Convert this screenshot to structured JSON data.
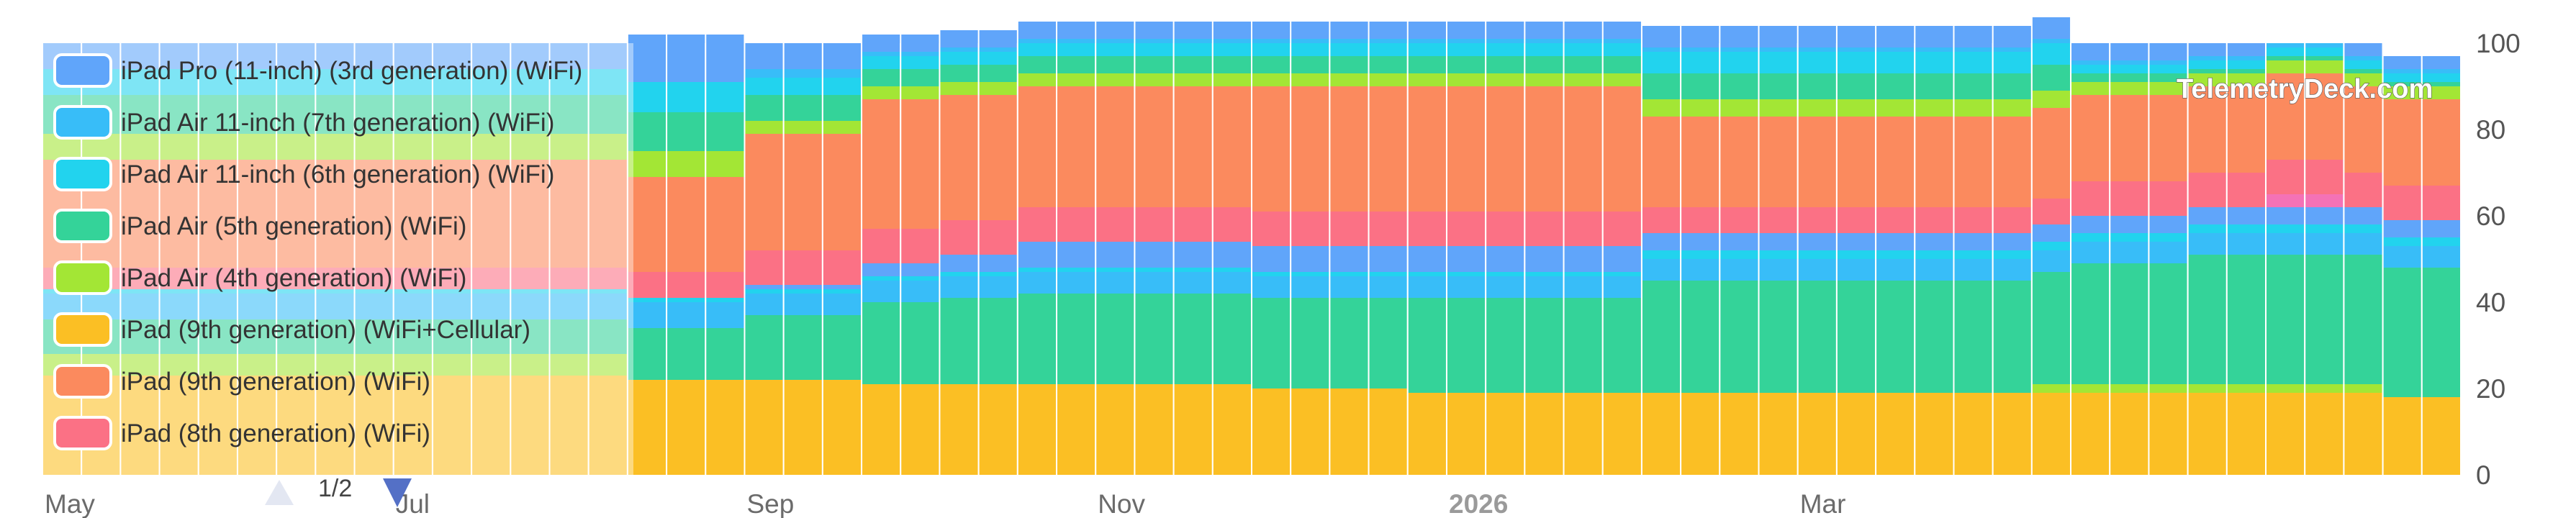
{
  "watermark": "TelemetryDeck.com",
  "pager": {
    "label": "1/2"
  },
  "colors": {
    "iPad Pro (11-inch) (3rd generation) (WiFi)": "#60a5fa",
    "iPad Air 11-inch (7th generation) (WiFi)": "#38bdf8",
    "iPad Air 11-inch (6th generation) (WiFi)": "#22d3ee",
    "iPad Air (5th generation) (WiFi)": "#34d399",
    "iPad Air (4th generation) (WiFi)": "#a3e635",
    "iPad (9th generation) (WiFi+Cellular)": "#fbbf24",
    "iPad (9th generation) (WiFi)": "#fb8a5e",
    "iPad (8th generation) (WiFi)": "#fb7185",
    "other": "#f472b6"
  },
  "chart_data": {
    "type": "bar",
    "stacked": true,
    "percent": true,
    "ylim": [
      0,
      100
    ],
    "yticks": [
      "0",
      "20",
      "40",
      "60",
      "80",
      "100"
    ],
    "x_ticks": [
      {
        "label": "May",
        "bar": 0
      },
      {
        "label": "Jul",
        "bar": 9
      },
      {
        "label": "Sep",
        "bar": 18
      },
      {
        "label": "Nov",
        "bar": 27
      },
      {
        "label": "2026",
        "bar": 36,
        "bold": true
      },
      {
        "label": "Mar",
        "bar": 45
      }
    ],
    "legend": [
      "iPad Pro (11-inch) (3rd generation) (WiFi)",
      "iPad Air 11-inch (7th generation) (WiFi)",
      "iPad Air 11-inch (6th generation) (WiFi)",
      "iPad Air (5th generation) (WiFi)",
      "iPad Air (4th generation) (WiFi)",
      "iPad (9th generation) (WiFi+Cellular)",
      "iPad (9th generation) (WiFi)",
      "iPad (8th generation) (WiFi)"
    ],
    "stack_order": [
      "iPad (9th generation) (WiFi+Cellular)",
      "iPad Air (4th generation) (WiFi)",
      "iPad Air (5th generation) (WiFi)",
      "iPad Air 11-inch (7th generation) (WiFi)",
      "iPad Air 11-inch (6th generation) (WiFi)",
      "iPad Pro (11-inch) (3rd generation) (WiFi)",
      "other",
      "iPad (8th generation) (WiFi)",
      "iPad (9th generation) (WiFi)",
      "iPad Air (4th generation) (WiFi)",
      "iPad Air (5th generation) (WiFi)",
      "iPad Air 11-inch (6th generation) (WiFi)",
      "iPad Air 11-inch (7th generation) (WiFi)",
      "iPad Pro (11-inch) (3rd generation) (WiFi)"
    ],
    "series": [
      {
        "name": "iPad (9th generation) (WiFi+Cellular)",
        "values": [
          23,
          23,
          23,
          23,
          23,
          23,
          23,
          23,
          23,
          23,
          23,
          23,
          23,
          23,
          23,
          22,
          22,
          22,
          22,
          22,
          22,
          21,
          21,
          21,
          21,
          21,
          21,
          21,
          21,
          21,
          21,
          20,
          20,
          20,
          20,
          19,
          19,
          19,
          19,
          19,
          19,
          19,
          19,
          19,
          19,
          19,
          19,
          19,
          19,
          19,
          19,
          19,
          19,
          19,
          19,
          19,
          19,
          19,
          19,
          19,
          18,
          18
        ]
      },
      {
        "name": "iPad Air (4th generation) (WiFi) (lower)",
        "values": [
          5,
          5,
          5,
          5,
          5,
          5,
          5,
          5,
          5,
          5,
          5,
          5,
          5,
          5,
          5,
          0,
          0,
          0,
          0,
          0,
          0,
          0,
          0,
          0,
          0,
          0,
          0,
          0,
          0,
          0,
          0,
          0,
          0,
          0,
          0,
          0,
          0,
          0,
          0,
          0,
          0,
          0,
          0,
          0,
          0,
          0,
          0,
          0,
          0,
          0,
          0,
          2,
          2,
          2,
          2,
          2,
          2,
          2,
          2,
          2,
          0,
          0
        ]
      },
      {
        "name": "iPad Air (5th generation) (WiFi) (lower)",
        "values": [
          8,
          8,
          8,
          8,
          8,
          8,
          8,
          8,
          8,
          8,
          8,
          8,
          8,
          8,
          8,
          12,
          12,
          12,
          15,
          15,
          15,
          19,
          19,
          20,
          20,
          21,
          21,
          21,
          21,
          21,
          21,
          21,
          21,
          21,
          21,
          22,
          22,
          22,
          22,
          22,
          22,
          26,
          26,
          26,
          26,
          26,
          26,
          26,
          26,
          26,
          26,
          26,
          28,
          28,
          28,
          30,
          30,
          30,
          30,
          30,
          30,
          30
        ]
      },
      {
        "name": "iPad Air 11-inch (7th generation) (WiFi) (lower)",
        "values": [
          6,
          6,
          6,
          6,
          6,
          6,
          6,
          6,
          6,
          6,
          6,
          6,
          6,
          6,
          6,
          6,
          6,
          6,
          5,
          5,
          5,
          5,
          5,
          5,
          5,
          5,
          5,
          5,
          5,
          5,
          5,
          5,
          5,
          5,
          5,
          5,
          5,
          5,
          5,
          5,
          5,
          5,
          5,
          5,
          5,
          5,
          5,
          5,
          5,
          5,
          5,
          5,
          5,
          5,
          5,
          5,
          5,
          5,
          5,
          5,
          5,
          5
        ]
      },
      {
        "name": "iPad Air 11-inch (6th generation) (WiFi) (lower)",
        "values": [
          1,
          1,
          1,
          1,
          1,
          1,
          1,
          1,
          1,
          1,
          1,
          1,
          1,
          1,
          1,
          1,
          1,
          1,
          1,
          1,
          1,
          1,
          1,
          1,
          1,
          1,
          1,
          1,
          1,
          1,
          1,
          1,
          1,
          1,
          1,
          1,
          1,
          1,
          1,
          1,
          1,
          2,
          2,
          2,
          2,
          2,
          2,
          2,
          2,
          2,
          2,
          2,
          2,
          2,
          2,
          2,
          2,
          2,
          2,
          2,
          2,
          2
        ]
      },
      {
        "name": "iPad Pro (11-inch) (3rd generation) (WiFi) (lower)",
        "values": [
          0,
          0,
          0,
          0,
          0,
          0,
          0,
          0,
          0,
          0,
          0,
          0,
          0,
          0,
          0,
          0,
          0,
          0,
          1,
          1,
          1,
          3,
          3,
          4,
          4,
          6,
          6,
          6,
          6,
          6,
          6,
          6,
          6,
          6,
          6,
          6,
          6,
          6,
          6,
          6,
          6,
          4,
          4,
          4,
          4,
          4,
          4,
          4,
          4,
          4,
          4,
          4,
          4,
          4,
          4,
          4,
          4,
          4,
          4,
          4,
          4,
          4
        ]
      },
      {
        "name": "other",
        "values": [
          0,
          0,
          0,
          0,
          0,
          0,
          0,
          0,
          0,
          0,
          0,
          0,
          0,
          0,
          0,
          0,
          0,
          0,
          0,
          0,
          0,
          0,
          0,
          0,
          0,
          0,
          0,
          0,
          0,
          0,
          0,
          0,
          0,
          0,
          0,
          0,
          0,
          0,
          0,
          0,
          0,
          0,
          0,
          0,
          0,
          0,
          0,
          0,
          0,
          0,
          0,
          0,
          0,
          0,
          0,
          0,
          0,
          3,
          3,
          0,
          0,
          0
        ]
      },
      {
        "name": "iPad (8th generation) (WiFi)",
        "values": [
          5,
          5,
          5,
          5,
          5,
          5,
          5,
          5,
          5,
          5,
          5,
          5,
          5,
          5,
          5,
          6,
          6,
          6,
          8,
          8,
          8,
          8,
          8,
          8,
          8,
          8,
          8,
          8,
          8,
          8,
          8,
          8,
          8,
          8,
          8,
          8,
          8,
          8,
          8,
          8,
          8,
          6,
          6,
          6,
          6,
          6,
          6,
          6,
          6,
          6,
          6,
          6,
          8,
          8,
          8,
          8,
          8,
          8,
          8,
          8,
          8,
          8
        ]
      },
      {
        "name": "iPad (9th generation) (WiFi)",
        "values": [
          25,
          25,
          25,
          25,
          25,
          25,
          25,
          25,
          25,
          25,
          25,
          25,
          25,
          25,
          25,
          22,
          22,
          22,
          27,
          27,
          27,
          30,
          30,
          29,
          29,
          28,
          28,
          28,
          28,
          28,
          28,
          29,
          29,
          29,
          29,
          29,
          29,
          29,
          29,
          29,
          29,
          21,
          21,
          21,
          21,
          21,
          21,
          21,
          21,
          21,
          21,
          21,
          20,
          20,
          20,
          20,
          20,
          20,
          20,
          20,
          20,
          20
        ]
      },
      {
        "name": "iPad Air (4th generation) (WiFi) (upper)",
        "values": [
          6,
          6,
          6,
          6,
          6,
          6,
          6,
          6,
          6,
          6,
          6,
          6,
          6,
          6,
          6,
          6,
          6,
          6,
          3,
          3,
          3,
          3,
          3,
          3,
          3,
          3,
          3,
          3,
          3,
          3,
          3,
          3,
          3,
          3,
          3,
          3,
          3,
          3,
          3,
          3,
          3,
          4,
          4,
          4,
          4,
          4,
          4,
          4,
          4,
          4,
          4,
          4,
          3,
          3,
          3,
          3,
          3,
          3,
          3,
          3,
          3,
          3
        ]
      },
      {
        "name": "iPad Air (5th generation) (WiFi) (upper)",
        "values": [
          9,
          9,
          9,
          9,
          9,
          9,
          9,
          9,
          9,
          9,
          9,
          9,
          9,
          9,
          9,
          9,
          9,
          9,
          6,
          6,
          6,
          4,
          4,
          4,
          4,
          4,
          4,
          4,
          4,
          4,
          4,
          4,
          4,
          4,
          4,
          4,
          4,
          4,
          4,
          4,
          4,
          6,
          6,
          6,
          6,
          6,
          6,
          6,
          6,
          6,
          6,
          6,
          2,
          2,
          2,
          1,
          1,
          1,
          1,
          1,
          1,
          1
        ]
      },
      {
        "name": "iPad Air 11-inch (6th generation) (WiFi) (upper)",
        "values": [
          6,
          6,
          6,
          6,
          6,
          6,
          6,
          6,
          6,
          6,
          6,
          6,
          6,
          6,
          6,
          7,
          7,
          7,
          4,
          4,
          4,
          3,
          3,
          3,
          3,
          3,
          3,
          3,
          3,
          3,
          3,
          3,
          3,
          3,
          3,
          3,
          3,
          3,
          3,
          3,
          3,
          5,
          5,
          5,
          5,
          5,
          5,
          5,
          5,
          5,
          5,
          5,
          2,
          2,
          2,
          2,
          2,
          2,
          2,
          2,
          2,
          2
        ]
      },
      {
        "name": "iPad Air 11-inch (7th generation) (WiFi) (upper)",
        "values": [
          0,
          0,
          0,
          0,
          0,
          0,
          0,
          0,
          0,
          0,
          0,
          0,
          0,
          0,
          0,
          0,
          0,
          0,
          2,
          2,
          2,
          1,
          1,
          1,
          1,
          1,
          1,
          1,
          1,
          1,
          1,
          1,
          1,
          1,
          1,
          1,
          1,
          1,
          1,
          1,
          1,
          1,
          1,
          1,
          1,
          1,
          1,
          1,
          1,
          1,
          1,
          1,
          1,
          1,
          1,
          1,
          1,
          1,
          1,
          1,
          1,
          1
        ]
      },
      {
        "name": "iPad Pro (11-inch) (3rd generation) (WiFi) (upper)",
        "values": [
          6,
          6,
          6,
          6,
          6,
          6,
          6,
          6,
          6,
          6,
          6,
          6,
          6,
          6,
          6,
          11,
          11,
          11,
          6,
          6,
          6,
          4,
          4,
          4,
          4,
          4,
          4,
          4,
          4,
          4,
          4,
          4,
          4,
          4,
          4,
          4,
          4,
          4,
          4,
          4,
          4,
          5,
          5,
          5,
          5,
          5,
          5,
          5,
          5,
          5,
          5,
          5,
          4,
          4,
          4,
          3,
          3,
          0,
          0,
          3,
          3,
          3
        ]
      }
    ]
  }
}
